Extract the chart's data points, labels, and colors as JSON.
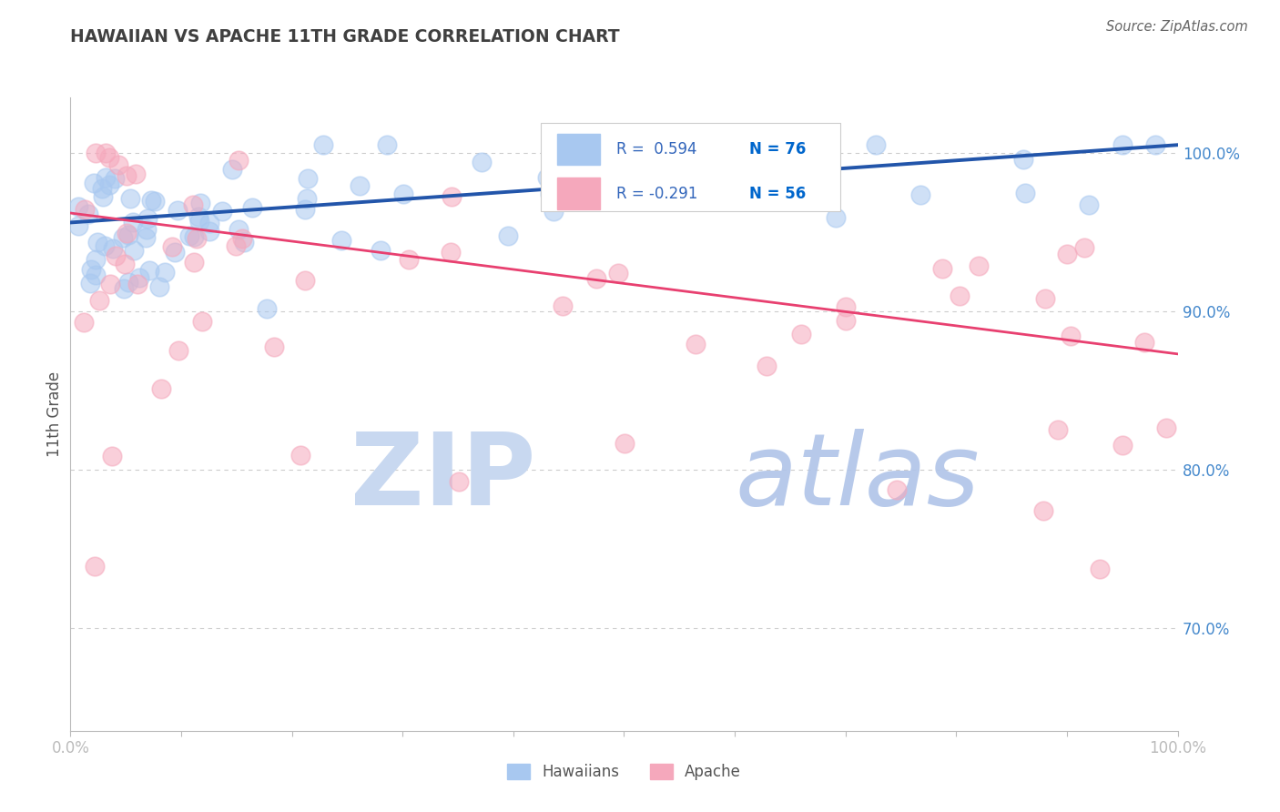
{
  "title": "HAWAIIAN VS APACHE 11TH GRADE CORRELATION CHART",
  "source_text": "Source: ZipAtlas.com",
  "ylabel": "11th Grade",
  "xlim": [
    0.0,
    1.0
  ],
  "ylim": [
    0.635,
    1.035
  ],
  "right_yticks": [
    0.7,
    0.8,
    0.9,
    1.0
  ],
  "right_ytick_labels": [
    "70.0%",
    "80.0%",
    "90.0%",
    "100.0%"
  ],
  "hawaiian_R": 0.594,
  "hawaiian_N": 76,
  "apache_R": -0.291,
  "apache_N": 56,
  "hawaiian_color": "#A8C8F0",
  "apache_color": "#F5A8BC",
  "hawaiian_edge_color": "#A8C8F0",
  "apache_edge_color": "#F5A8BC",
  "hawaiian_line_color": "#2255AA",
  "apache_line_color": "#E84070",
  "grid_color": "#CCCCCC",
  "title_color": "#404040",
  "axis_label_color": "#4488CC",
  "watermark_zip_color": "#C8D8F0",
  "watermark_atlas_color": "#B0C4E8",
  "legend_R_color": "#3366BB",
  "legend_N_color": "#0066CC",
  "hawaiian_line_y0": 0.956,
  "hawaiian_line_y1": 1.005,
  "apache_line_y0": 0.962,
  "apache_line_y1": 0.873
}
